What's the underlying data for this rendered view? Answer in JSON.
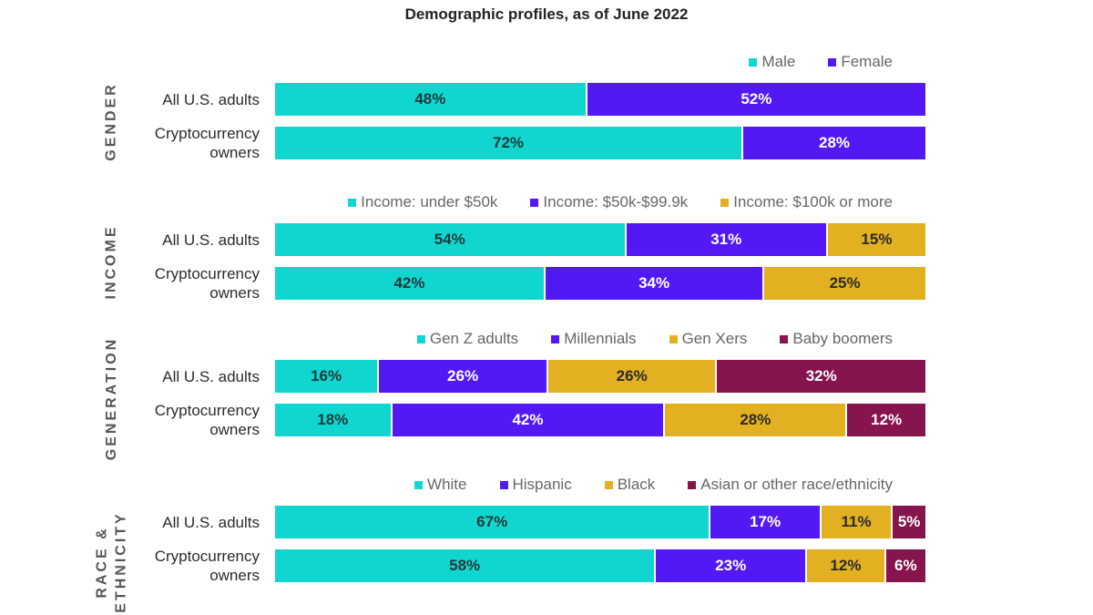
{
  "title": "Demographic profiles, as of June 2022",
  "colors": {
    "teal": "#11d6cf",
    "purple": "#5319f4",
    "gold": "#e3b021",
    "maroon": "#86144d"
  },
  "chart_data": [
    {
      "type": "bar",
      "stacked": true,
      "orientation": "horizontal",
      "section": "GENDER",
      "categories": [
        "All U.S. adults",
        "Cryptocurrency owners"
      ],
      "series": [
        {
          "name": "Male",
          "color": "#11d6cf",
          "text_color": "#1d3a3a",
          "values": [
            48,
            72
          ]
        },
        {
          "name": "Female",
          "color": "#5319f4",
          "text_color": "#ffffff",
          "values": [
            52,
            28
          ]
        }
      ],
      "unit": "%"
    },
    {
      "type": "bar",
      "stacked": true,
      "orientation": "horizontal",
      "section": "INCOME",
      "categories": [
        "All U.S. adults",
        "Cryptocurrency owners"
      ],
      "series": [
        {
          "name": "Income: under $50k",
          "color": "#11d6cf",
          "text_color": "#1d3a3a",
          "values": [
            54,
            42
          ]
        },
        {
          "name": "Income: $50k-$99.9k",
          "color": "#5319f4",
          "text_color": "#ffffff",
          "values": [
            31,
            34
          ]
        },
        {
          "name": "Income: $100k or more",
          "color": "#e3b021",
          "text_color": "#2b2b2b",
          "values": [
            15,
            25
          ]
        }
      ],
      "unit": "%"
    },
    {
      "type": "bar",
      "stacked": true,
      "orientation": "horizontal",
      "section": "GENERATION",
      "categories": [
        "All U.S. adults",
        "Cryptocurrency owners"
      ],
      "series": [
        {
          "name": "Gen Z adults",
          "color": "#11d6cf",
          "text_color": "#1d3a3a",
          "values": [
            16,
            18
          ]
        },
        {
          "name": "Millennials",
          "color": "#5319f4",
          "text_color": "#ffffff",
          "values": [
            26,
            42
          ]
        },
        {
          "name": "Gen Xers",
          "color": "#e3b021",
          "text_color": "#2b2b2b",
          "values": [
            26,
            28
          ]
        },
        {
          "name": "Baby boomers",
          "color": "#86144d",
          "text_color": "#ffffff",
          "values": [
            32,
            12
          ]
        }
      ],
      "unit": "%"
    },
    {
      "type": "bar",
      "stacked": true,
      "orientation": "horizontal",
      "section": "RACE & ETHNICITY",
      "categories": [
        "All U.S. adults",
        "Cryptocurrency owners"
      ],
      "series": [
        {
          "name": "White",
          "color": "#11d6cf",
          "text_color": "#1d3a3a",
          "values": [
            67,
            58
          ]
        },
        {
          "name": "Hispanic",
          "color": "#5319f4",
          "text_color": "#ffffff",
          "values": [
            17,
            23
          ]
        },
        {
          "name": "Black",
          "color": "#e3b021",
          "text_color": "#2b2b2b",
          "values": [
            11,
            12
          ]
        },
        {
          "name": "Asian or other race/ethnicity",
          "color": "#86144d",
          "text_color": "#ffffff",
          "values": [
            5,
            6
          ]
        }
      ],
      "unit": "%"
    }
  ]
}
